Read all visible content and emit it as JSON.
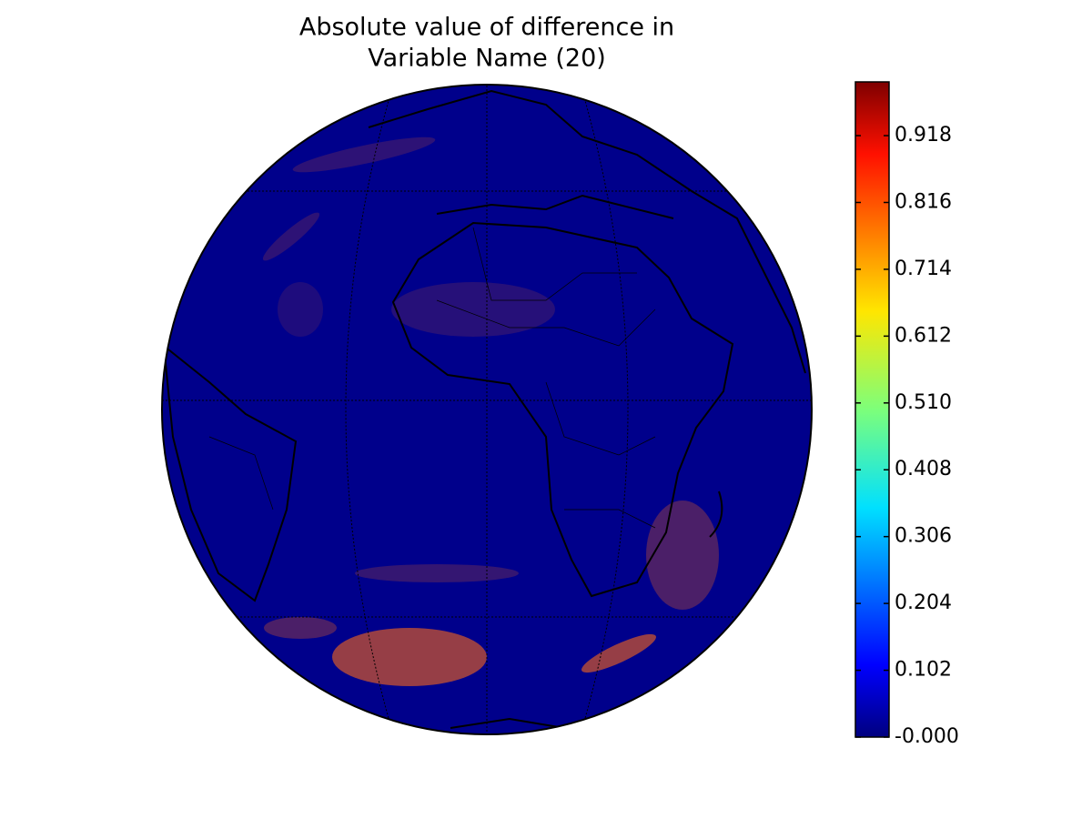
{
  "map": {
    "title": [
      "Absolute value of difference in",
      "Variable Name (20)"
    ],
    "colormap": "jet",
    "colorbar": {
      "range": [
        0,
        1.0
      ],
      "ticks": [
        {
          "value": 0,
          "label": "-0.000"
        },
        0.102,
        0.204,
        0.306,
        0.408,
        {
          "value": 0.51,
          "label": "0.510"
        },
        0.612,
        0.714,
        0.816,
        0.918
      ]
    }
  }
}
